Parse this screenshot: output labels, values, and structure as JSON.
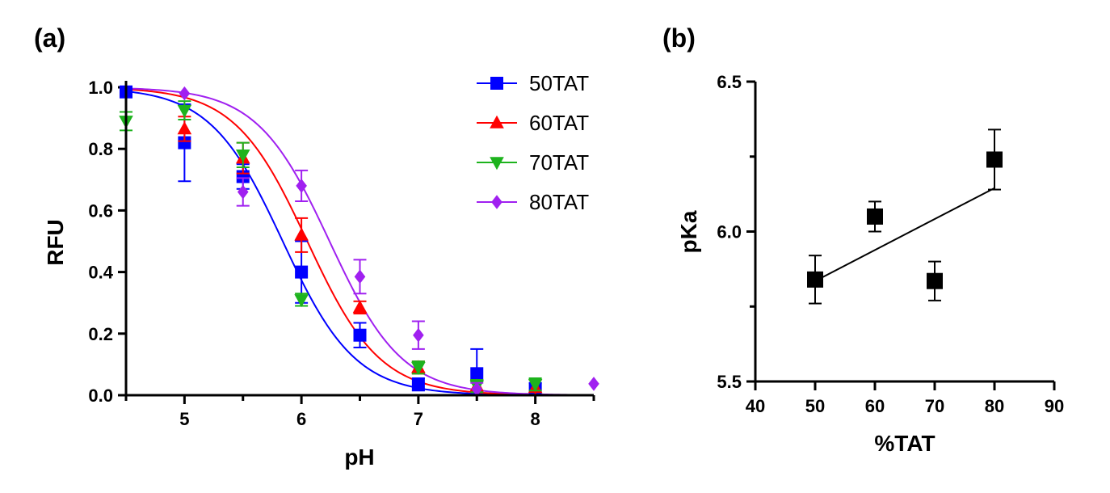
{
  "chart_data": [
    {
      "panel_label": "(a)",
      "type": "scatter",
      "xlabel": "pH",
      "ylabel": "RFU",
      "xlim": [
        4.5,
        8.5
      ],
      "ylim": [
        0,
        1.0
      ],
      "xticks": [
        5,
        6,
        7,
        8
      ],
      "yticks": [
        0.0,
        0.2,
        0.4,
        0.6,
        0.8,
        1.0
      ],
      "legend_position": "top-right",
      "series": [
        {
          "name": "50TAT",
          "color": "#0000ff",
          "marker": "square",
          "x": [
            4.5,
            5.0,
            5.5,
            6.0,
            6.5,
            7.0,
            7.5,
            8.0
          ],
          "y": [
            0.985,
            0.82,
            0.71,
            0.4,
            0.195,
            0.035,
            0.07,
            0.02
          ],
          "err": [
            0.0,
            0.125,
            0.04,
            0.1,
            0.04,
            0.02,
            0.08,
            0.02
          ],
          "fit": {
            "top": 1.0,
            "bottom": 0.0,
            "ec50": 5.84,
            "slope": 1.4
          }
        },
        {
          "name": "60TAT",
          "color": "#ff0000",
          "marker": "triangle-up",
          "x": [
            5.0,
            5.5,
            6.0,
            6.5,
            7.0,
            7.5,
            8.0
          ],
          "y": [
            0.865,
            0.77,
            0.52,
            0.285,
            0.09,
            0.03,
            0.025
          ],
          "err": [
            0.04,
            0.05,
            0.055,
            0.02,
            0.02,
            0.02,
            0.025
          ],
          "fit": {
            "top": 1.0,
            "bottom": 0.0,
            "ec50": 6.05,
            "slope": 1.4
          }
        },
        {
          "name": "70TAT",
          "color": "#1db31d",
          "marker": "triangle-down",
          "x": [
            4.5,
            5.0,
            5.5,
            6.0,
            7.0,
            7.5,
            8.0
          ],
          "y": [
            0.89,
            0.925,
            0.78,
            0.31,
            0.09,
            0.03,
            0.035
          ],
          "err": [
            0.03,
            0.03,
            0.04,
            0.02,
            0.02,
            0.02,
            0.02
          ]
        },
        {
          "name": "80TAT",
          "color": "#a020f0",
          "marker": "diamond",
          "x": [
            5.0,
            5.5,
            6.0,
            6.5,
            7.0,
            7.5,
            8.5
          ],
          "y": [
            0.98,
            0.66,
            0.68,
            0.385,
            0.195,
            0.02,
            0.037
          ],
          "err": [
            0.0,
            0.045,
            0.05,
            0.055,
            0.045,
            0.02,
            0.0
          ],
          "fit": {
            "top": 1.0,
            "bottom": 0.0,
            "ec50": 6.24,
            "slope": 1.4
          }
        }
      ]
    },
    {
      "panel_label": "(b)",
      "type": "scatter",
      "xlabel": "%TAT",
      "ylabel": "pKa",
      "xlim": [
        40,
        90
      ],
      "ylim": [
        5.5,
        6.5
      ],
      "xticks": [
        40,
        50,
        60,
        70,
        80,
        90
      ],
      "yticks": [
        5.5,
        6.0,
        6.5
      ],
      "series": [
        {
          "color": "#000000",
          "marker": "square",
          "x": [
            50,
            60,
            70,
            80
          ],
          "y": [
            5.84,
            6.05,
            5.835,
            6.24
          ],
          "err": [
            0.08,
            0.05,
            0.065,
            0.1
          ]
        }
      ],
      "trendline": {
        "x": [
          50,
          80
        ],
        "y": [
          5.835,
          6.145
        ]
      }
    }
  ]
}
